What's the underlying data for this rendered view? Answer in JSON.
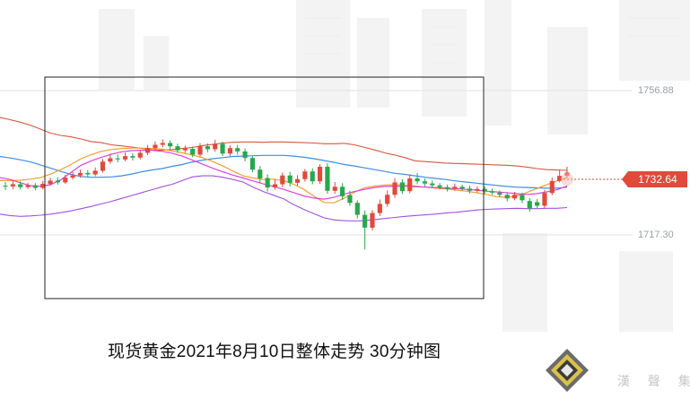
{
  "caption": "现货黄金2021年8月10日整体走势  30分钟图",
  "price_labels": {
    "upper": "1756.88",
    "current": "1732.64",
    "lower": "1717.30"
  },
  "watermark": {
    "company_text": "漢 聲 集 團"
  },
  "colors": {
    "up": "#e04a3b",
    "down": "#27a84a",
    "bb_upper": "#d9553e",
    "bb_lower": "#a54fe0",
    "ma_blue": "#3d8ee0",
    "ma_orange": "#f0a030",
    "ma_magenta": "#e040e0"
  },
  "chart_data": {
    "type": "candlestick",
    "title": "现货黄金2021年8月10日整体走势  30分钟图",
    "y_ticks": [
      1756.88,
      1732.64,
      1717.3
    ],
    "ylim": [
      1700,
      1770
    ],
    "candles": [
      [
        1730.8,
        1730.6,
        1731.8,
        1729.6
      ],
      [
        1730.6,
        1731.2,
        1732.4,
        1729.8
      ],
      [
        1731.2,
        1730.4,
        1732.0,
        1729.8
      ],
      [
        1730.4,
        1730.9,
        1731.6,
        1729.9
      ],
      [
        1730.9,
        1730.2,
        1731.5,
        1729.5
      ],
      [
        1730.2,
        1731.3,
        1732.1,
        1729.8
      ],
      [
        1731.3,
        1732.2,
        1733.0,
        1730.8
      ],
      [
        1732.2,
        1731.7,
        1733.1,
        1731.1
      ],
      [
        1731.7,
        1733.0,
        1733.8,
        1731.3
      ],
      [
        1733.0,
        1733.6,
        1734.5,
        1732.5
      ],
      [
        1733.6,
        1734.3,
        1735.2,
        1733.0
      ],
      [
        1734.3,
        1733.9,
        1735.1,
        1733.1
      ],
      [
        1733.9,
        1734.9,
        1735.8,
        1733.4
      ],
      [
        1734.9,
        1737.4,
        1738.1,
        1734.4
      ],
      [
        1737.4,
        1738.3,
        1739.6,
        1736.8
      ],
      [
        1738.3,
        1738.0,
        1739.4,
        1737.2
      ],
      [
        1738.0,
        1738.9,
        1739.9,
        1737.5
      ],
      [
        1738.9,
        1738.5,
        1739.7,
        1737.7
      ],
      [
        1738.5,
        1739.8,
        1740.6,
        1738.0
      ],
      [
        1739.8,
        1741.1,
        1742.0,
        1739.2
      ],
      [
        1741.1,
        1742.0,
        1742.9,
        1740.5
      ],
      [
        1742.0,
        1742.5,
        1743.5,
        1741.3
      ],
      [
        1742.5,
        1741.6,
        1743.2,
        1740.8
      ],
      [
        1741.6,
        1740.5,
        1742.3,
        1739.8
      ],
      [
        1740.5,
        1741.0,
        1741.8,
        1739.8
      ],
      [
        1740.9,
        1739.3,
        1741.5,
        1738.6
      ],
      [
        1739.3,
        1741.6,
        1742.5,
        1738.8
      ],
      [
        1741.6,
        1740.8,
        1742.4,
        1740.0
      ],
      [
        1740.8,
        1742.3,
        1743.4,
        1740.1
      ],
      [
        1742.3,
        1739.6,
        1742.9,
        1738.9
      ],
      [
        1739.6,
        1741.1,
        1741.9,
        1738.9
      ],
      [
        1741.1,
        1740.2,
        1742.0,
        1739.3
      ],
      [
        1740.2,
        1738.4,
        1741.0,
        1737.5
      ],
      [
        1738.4,
        1735.2,
        1738.9,
        1734.5
      ],
      [
        1735.2,
        1732.8,
        1736.2,
        1731.6
      ],
      [
        1732.9,
        1730.3,
        1733.9,
        1729.2
      ],
      [
        1730.3,
        1731.2,
        1732.6,
        1729.7
      ],
      [
        1731.2,
        1733.6,
        1734.4,
        1730.4
      ],
      [
        1733.6,
        1731.6,
        1734.6,
        1730.6
      ],
      [
        1731.6,
        1732.6,
        1733.7,
        1730.8
      ],
      [
        1732.6,
        1734.7,
        1735.4,
        1731.9
      ],
      [
        1734.7,
        1732.0,
        1735.6,
        1731.2
      ],
      [
        1732.0,
        1736.0,
        1736.7,
        1731.3
      ],
      [
        1736.0,
        1729.4,
        1737.0,
        1728.6
      ],
      [
        1729.4,
        1730.5,
        1731.8,
        1728.6
      ],
      [
        1730.5,
        1727.9,
        1731.5,
        1726.9
      ],
      [
        1728.2,
        1726.1,
        1729.4,
        1725.3
      ],
      [
        1726.1,
        1722.8,
        1726.8,
        1721.8
      ],
      [
        1722.8,
        1719.3,
        1724.0,
        1713.3
      ],
      [
        1719.3,
        1723.3,
        1724.1,
        1718.5
      ],
      [
        1723.3,
        1725.8,
        1727.0,
        1722.5
      ],
      [
        1725.8,
        1728.3,
        1729.5,
        1725.0
      ],
      [
        1728.3,
        1731.7,
        1732.9,
        1727.5
      ],
      [
        1731.7,
        1729.3,
        1732.6,
        1728.5
      ],
      [
        1729.3,
        1732.8,
        1733.9,
        1728.7
      ],
      [
        1732.8,
        1732.0,
        1734.3,
        1731.2
      ],
      [
        1732.0,
        1731.4,
        1732.8,
        1730.6
      ],
      [
        1731.4,
        1730.9,
        1732.2,
        1730.2
      ],
      [
        1730.9,
        1730.4,
        1731.5,
        1729.7
      ],
      [
        1730.4,
        1729.9,
        1731.1,
        1729.2
      ],
      [
        1729.9,
        1730.5,
        1731.4,
        1729.4
      ],
      [
        1730.5,
        1730.0,
        1731.1,
        1729.4
      ],
      [
        1730.0,
        1729.4,
        1730.8,
        1728.7
      ],
      [
        1729.4,
        1729.9,
        1730.6,
        1728.9
      ],
      [
        1729.9,
        1729.2,
        1730.6,
        1728.6
      ],
      [
        1729.2,
        1728.9,
        1730.0,
        1728.3
      ],
      [
        1728.9,
        1728.3,
        1729.5,
        1727.6
      ],
      [
        1728.3,
        1727.3,
        1728.9,
        1726.5
      ],
      [
        1727.3,
        1728.3,
        1729.1,
        1726.8
      ],
      [
        1728.3,
        1726.8,
        1728.9,
        1726.0
      ],
      [
        1726.6,
        1724.5,
        1727.4,
        1723.7
      ],
      [
        1726.3,
        1725.3,
        1727.1,
        1724.7
      ],
      [
        1725.3,
        1728.8,
        1729.7,
        1724.7
      ],
      [
        1728.8,
        1732.1,
        1733.0,
        1728.2
      ],
      [
        1732.1,
        1733.5,
        1735.0,
        1731.7
      ],
      [
        1733.5,
        1734.4,
        1736.0,
        1733.0
      ]
    ],
    "bb_upper": [
      1749.5,
      1748.9,
      1748.2,
      1747.4,
      1746.3,
      1745.2,
      1744.6,
      1744.2,
      1743.6,
      1742.9,
      1742.6,
      1742.0,
      1741.7,
      1741.4,
      1741.0,
      1740.6,
      1740.5,
      1740.7,
      1741.0,
      1741.3,
      1741.8,
      1742.1,
      1742.5,
      1742.7,
      1742.8,
      1742.8,
      1742.7,
      1742.8,
      1742.8,
      1742.7,
      1742.6,
      1742.5,
      1742.3,
      1742.3,
      1742.4,
      1742.0,
      1741.3,
      1740.6,
      1739.8,
      1739.2,
      1738.5,
      1737.6,
      1737.4,
      1737.2,
      1737.0,
      1736.9,
      1736.8,
      1736.7,
      1736.6,
      1736.5,
      1736.4,
      1736.2,
      1735.9,
      1735.5,
      1735.2,
      1735.1,
      1735.0
    ],
    "bb_lower": [
      1723.0,
      1722.6,
      1722.4,
      1722.5,
      1722.7,
      1723.0,
      1723.4,
      1723.9,
      1724.5,
      1725.1,
      1725.8,
      1726.5,
      1727.3,
      1728.1,
      1728.9,
      1729.7,
      1730.5,
      1731.2,
      1732.2,
      1733.2,
      1733.5,
      1733.5,
      1733.1,
      1732.5,
      1731.8,
      1730.4,
      1729.2,
      1728.2,
      1727.2,
      1725.6,
      1724.3,
      1723.1,
      1722.0,
      1721.4,
      1721.2,
      1721.1,
      1721.2,
      1721.5,
      1721.8,
      1722.1,
      1722.4,
      1722.6,
      1722.8,
      1723.0,
      1723.3,
      1723.5,
      1723.8,
      1724.1,
      1724.3,
      1724.4,
      1724.5,
      1724.6,
      1724.5,
      1724.5,
      1724.6,
      1724.6,
      1724.8
    ],
    "ma_blue": [
      1738.8,
      1738.4,
      1737.9,
      1737.3,
      1736.5,
      1735.6,
      1734.7,
      1733.9,
      1733.3,
      1733.1,
      1733.1,
      1733.2,
      1733.5,
      1734.0,
      1734.6,
      1735.1,
      1735.5,
      1736.1,
      1736.6,
      1737.3,
      1737.8,
      1738.2,
      1738.5,
      1738.8,
      1738.9,
      1739.0,
      1739.1,
      1739.1,
      1739.1,
      1738.9,
      1738.6,
      1738.2,
      1737.7,
      1737.2,
      1736.6,
      1736.2,
      1735.7,
      1735.2,
      1734.7,
      1734.2,
      1733.9,
      1733.5,
      1733.1,
      1732.8,
      1732.5,
      1732.1,
      1731.8,
      1731.5,
      1731.2,
      1730.9,
      1730.6,
      1730.4,
      1730.3,
      1730.2,
      1730.1,
      1730.1,
      1730.4
    ],
    "ma_magenta": [
      1733.0,
      1732.5,
      1731.6,
      1730.8,
      1730.6,
      1731.1,
      1732.4,
      1734.4,
      1736.4,
      1737.6,
      1738.6,
      1739.4,
      1740.1,
      1740.4,
      1740.5,
      1740.5,
      1740.2,
      1739.7,
      1738.9,
      1737.8,
      1736.7,
      1735.6,
      1734.6,
      1733.7,
      1732.9,
      1732.1,
      1731.3,
      1730.6,
      1729.8,
      1728.9,
      1728.0,
      1727.4,
      1727.1,
      1727.6,
      1728.5,
      1729.2,
      1729.8,
      1730.3,
      1730.6,
      1730.7,
      1730.6,
      1730.5,
      1730.4,
      1730.3,
      1730.1,
      1730.0,
      1729.8,
      1729.6,
      1729.3,
      1729.1,
      1728.9,
      1728.6,
      1728.4,
      1728.6,
      1729.1,
      1729.7,
      1730.7
    ],
    "ma_orange": [
      1732.2,
      1732.2,
      1732.3,
      1732.6,
      1733.0,
      1734.0,
      1735.2,
      1736.6,
      1738.2,
      1739.3,
      1740.2,
      1740.7,
      1741.0,
      1741.1,
      1741.1,
      1741.0,
      1740.8,
      1740.3,
      1739.8,
      1739.2,
      1738.5,
      1737.4,
      1736.2,
      1734.8,
      1733.5,
      1732.9,
      1732.5,
      1732.6,
      1732.2,
      1731.2,
      1729.8,
      1727.9,
      1726.2,
      1726.1,
      1727.4,
      1729.0,
      1730.2,
      1730.7,
      1731.0,
      1731.1,
      1731.0,
      1730.7,
      1730.4,
      1730.1,
      1729.9,
      1729.6,
      1729.3,
      1728.9,
      1728.4,
      1727.8,
      1727.6,
      1728.0,
      1728.9,
      1730.0,
      1731.1,
      1732.1,
      1733.0
    ]
  }
}
